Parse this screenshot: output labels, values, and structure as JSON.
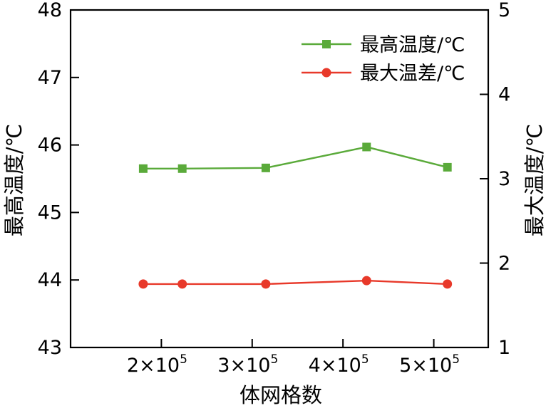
{
  "chart_data": {
    "type": "line",
    "xlabel": "体网格数",
    "ylabel_left": "最高温度/℃",
    "ylabel_right": "最大温度/℃",
    "x": [
      180000,
      223000,
      315000,
      426000,
      515000
    ],
    "x_ticks": [
      {
        "value": 200000,
        "label": "2×10",
        "exp": "5"
      },
      {
        "value": 300000,
        "label": "3×10",
        "exp": "5"
      },
      {
        "value": 400000,
        "label": "4×10",
        "exp": "5"
      },
      {
        "value": 500000,
        "label": "5×10",
        "exp": "5"
      }
    ],
    "xlim": [
      100000,
      560000
    ],
    "ylim_left": [
      43,
      48
    ],
    "ylim_right": [
      1,
      5
    ],
    "y_ticks_left": [
      43,
      44,
      45,
      46,
      47,
      48
    ],
    "y_ticks_right": [
      1,
      2,
      3,
      4,
      5
    ],
    "series": [
      {
        "name": "最高温度/℃",
        "axis": "left",
        "color": "#5aaa3a",
        "marker": "square",
        "values": [
          45.65,
          45.65,
          45.66,
          45.97,
          45.67
        ]
      },
      {
        "name": "最大温差/℃",
        "axis": "left",
        "color": "#e8392a",
        "marker": "circle",
        "values": [
          43.94,
          43.94,
          43.94,
          43.99,
          43.94
        ]
      }
    ],
    "grid": false,
    "legend_position": "top-right"
  }
}
